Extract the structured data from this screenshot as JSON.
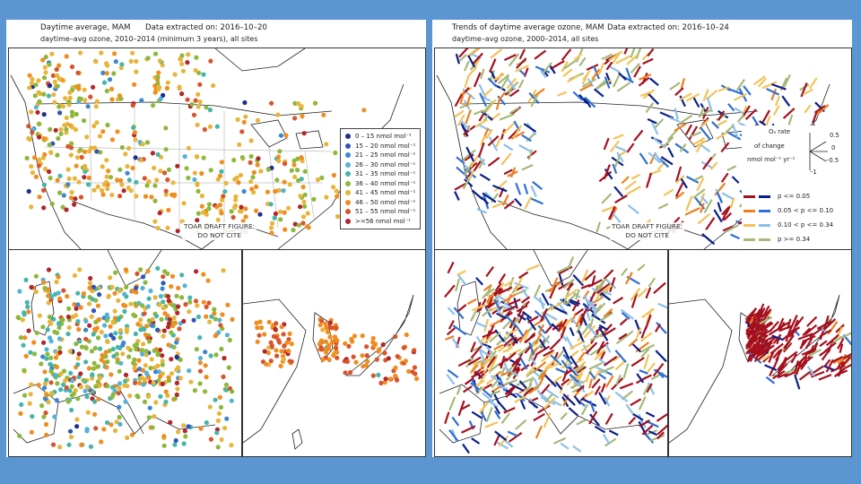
{
  "left_panel": {
    "title": "Daytime average, MAM",
    "extracted": "Data extracted on:  2016–10–20",
    "subtitle": "daytime–avg ozone, 2010–2014 (minimum 3 years),   all sites",
    "draft_line1": "TOAR DRAFT FIGURE:",
    "draft_line2": "DO NOT CITE",
    "legend": [
      {
        "label": "0 – 15  nmol mol⁻¹",
        "color": "#1f2f8c"
      },
      {
        "label": "15 – 20  nmol mol⁻¹",
        "color": "#2f55b8"
      },
      {
        "label": "21 – 25  nmol mol⁻¹",
        "color": "#3d86d1"
      },
      {
        "label": "26 – 30  nmol mol⁻¹",
        "color": "#52b3d9"
      },
      {
        "label": "31 – 35  nmol mol⁻¹",
        "color": "#45b5aa"
      },
      {
        "label": "36 – 40  nmol mol⁻¹",
        "color": "#8cb83c"
      },
      {
        "label": "41 – 45  nmol mol⁻¹",
        "color": "#e8b53a"
      },
      {
        "label": "46 – 50  nmol mol⁻¹",
        "color": "#f08d1e"
      },
      {
        "label": "51 – 55  nmol mol⁻¹",
        "color": "#d9542a"
      },
      {
        "label": ">=56  nmol mol⁻¹",
        "color": "#b3262c"
      }
    ]
  },
  "right_panel": {
    "title": "Trends of daytime average ozone, MAM",
    "extracted": "Data extracted on:  2016–10–24",
    "subtitle": "daytime–avg ozone, 2000–2014,   all sites",
    "draft_line1": "TOAR DRAFT FIGURE:",
    "draft_line2": "DO NOT CITE",
    "rate_key": {
      "l1": "O₃ rate",
      "l2": "of change",
      "l3": "nmol mol⁻¹ yr⁻¹",
      "v_top": "1",
      "v_half": "0.5",
      "v_zero": "0",
      "v_neg": "–0.5",
      "v_bottom": "–1"
    },
    "legend": [
      {
        "label": "p <= 0.05",
        "pos_color": "#a5101e",
        "neg_color": "#0a1f8a"
      },
      {
        "label": "0.05 < p <= 0.10",
        "pos_color": "#ef7e1f",
        "neg_color": "#2f6fd1"
      },
      {
        "label": "0.10 < p <= 0.34",
        "pos_color": "#f2c35a",
        "neg_color": "#8cc0ea"
      },
      {
        "label": "p >= 0.34",
        "pos_color": "#a6b979",
        "neg_color": "#a6b979"
      }
    ]
  }
}
